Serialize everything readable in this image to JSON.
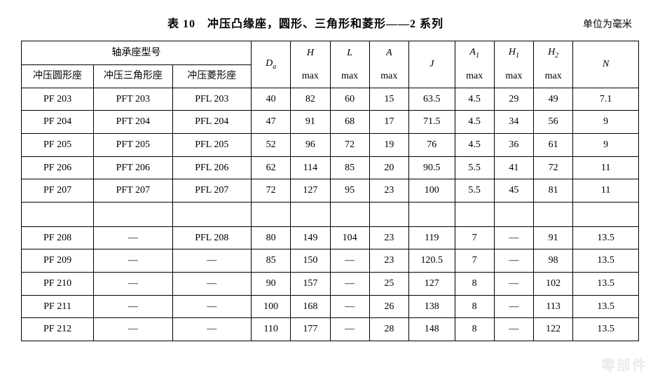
{
  "title": "表 10　冲压凸缘座，圆形、三角形和菱形——2 系列",
  "unit_label": "单位为毫米",
  "header": {
    "group_label": "轴承座型号",
    "sub_labels": [
      "冲压圆形座",
      "冲压三角形座",
      "冲压菱形座"
    ],
    "Da_html": "D<span class='sub'>a</span>",
    "H": "H",
    "L": "L",
    "A": "A",
    "J": "J",
    "A1_html": "A<span class='sub'>1</span>",
    "H1_html": "H<span class='sub'>1</span>",
    "H2_html": "H<span class='sub'>2</span>",
    "N": "N",
    "max": "max"
  },
  "col_widths_pct": [
    11,
    12,
    12,
    6,
    6,
    6,
    6,
    7,
    6,
    6,
    6,
    10
  ],
  "rows_top": [
    [
      "PF 203",
      "PFT 203",
      "PFL 203",
      "40",
      "82",
      "60",
      "15",
      "63.5",
      "4.5",
      "29",
      "49",
      "7.1"
    ],
    [
      "PF 204",
      "PFT 204",
      "PFL 204",
      "47",
      "91",
      "68",
      "17",
      "71.5",
      "4.5",
      "34",
      "56",
      "9"
    ],
    [
      "PF 205",
      "PFT 205",
      "PFL 205",
      "52",
      "96",
      "72",
      "19",
      "76",
      "4.5",
      "36",
      "61",
      "9"
    ],
    [
      "PF 206",
      "PFT 206",
      "PFL 206",
      "62",
      "114",
      "85",
      "20",
      "90.5",
      "5.5",
      "41",
      "72",
      "11"
    ],
    [
      "PF 207",
      "PFT 207",
      "PFL 207",
      "72",
      "127",
      "95",
      "23",
      "100",
      "5.5",
      "45",
      "81",
      "11"
    ]
  ],
  "rows_bottom": [
    [
      "PF 208",
      "—",
      "PFL 208",
      "80",
      "149",
      "104",
      "23",
      "119",
      "7",
      "—",
      "91",
      "13.5"
    ],
    [
      "PF 209",
      "—",
      "—",
      "85",
      "150",
      "—",
      "23",
      "120.5",
      "7",
      "—",
      "98",
      "13.5"
    ],
    [
      "PF 210",
      "—",
      "—",
      "90",
      "157",
      "—",
      "25",
      "127",
      "8",
      "—",
      "102",
      "13.5"
    ],
    [
      "PF 211",
      "—",
      "—",
      "100",
      "168",
      "—",
      "26",
      "138",
      "8",
      "—",
      "113",
      "13.5"
    ],
    [
      "PF 212",
      "—",
      "—",
      "110",
      "177",
      "—",
      "28",
      "148",
      "8",
      "—",
      "122",
      "13.5"
    ]
  ],
  "watermark": "零部件"
}
